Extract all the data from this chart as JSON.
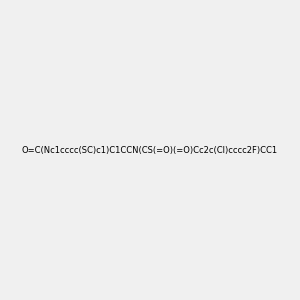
{
  "smiles": "O=C(Nc1cccc(SC)c1)C1CCN(CS(=O)(=O)Cc2c(Cl)cccc2F)CC1",
  "title": "",
  "bg_color": "#f0f0f0",
  "fig_width": 3.0,
  "fig_height": 3.0,
  "dpi": 100
}
